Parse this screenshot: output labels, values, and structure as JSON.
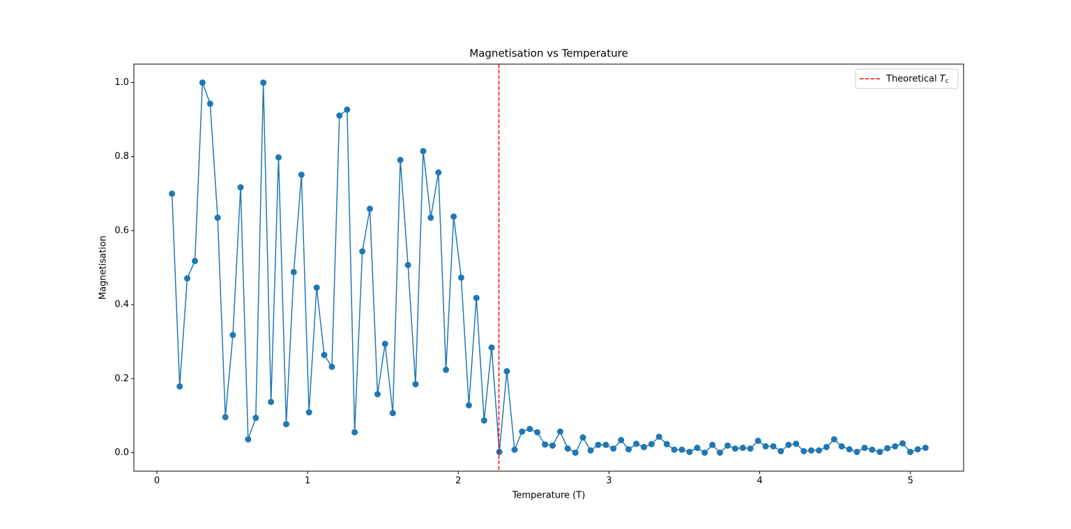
{
  "chart_data": {
    "type": "line",
    "title": "Magnetisation vs Temperature",
    "xlabel": "Temperature (T)",
    "ylabel": "Magnetisation",
    "x": [
      0.1,
      0.151,
      0.201,
      0.252,
      0.302,
      0.353,
      0.403,
      0.454,
      0.504,
      0.555,
      0.605,
      0.656,
      0.706,
      0.757,
      0.807,
      0.858,
      0.908,
      0.959,
      1.009,
      1.06,
      1.11,
      1.161,
      1.211,
      1.262,
      1.312,
      1.363,
      1.413,
      1.464,
      1.514,
      1.565,
      1.615,
      1.666,
      1.716,
      1.767,
      1.817,
      1.868,
      1.918,
      1.969,
      2.019,
      2.07,
      2.12,
      2.171,
      2.221,
      2.272,
      2.322,
      2.373,
      2.423,
      2.474,
      2.524,
      2.575,
      2.625,
      2.676,
      2.726,
      2.777,
      2.827,
      2.878,
      2.928,
      2.979,
      3.029,
      3.08,
      3.13,
      3.181,
      3.231,
      3.282,
      3.332,
      3.383,
      3.433,
      3.484,
      3.534,
      3.585,
      3.635,
      3.686,
      3.736,
      3.787,
      3.837,
      3.888,
      3.938,
      3.989,
      4.039,
      4.09,
      4.14,
      4.191,
      4.241,
      4.292,
      4.342,
      4.393,
      4.443,
      4.494,
      4.544,
      4.595,
      4.645,
      4.696,
      4.746,
      4.797,
      4.847,
      4.898,
      4.948,
      4.999,
      5.049,
      5.1
    ],
    "series": [
      {
        "color": "#1f77b4",
        "marker": "o",
        "values": [
          0.7,
          0.179,
          0.471,
          0.518,
          1.0,
          0.943,
          0.635,
          0.096,
          0.318,
          0.717,
          0.036,
          0.094,
          1.0,
          0.137,
          0.798,
          0.077,
          0.488,
          0.751,
          0.109,
          0.446,
          0.264,
          0.232,
          0.911,
          0.927,
          0.055,
          0.544,
          0.659,
          0.158,
          0.294,
          0.107,
          0.791,
          0.507,
          0.185,
          0.815,
          0.635,
          0.757,
          0.224,
          0.638,
          0.473,
          0.128,
          0.418,
          0.087,
          0.284,
          0.002,
          0.22,
          0.008,
          0.057,
          0.064,
          0.055,
          0.022,
          0.019,
          0.057,
          0.011,
          0.0,
          0.041,
          0.006,
          0.021,
          0.021,
          0.011,
          0.034,
          0.009,
          0.024,
          0.015,
          0.023,
          0.043,
          0.023,
          0.008,
          0.008,
          0.002,
          0.013,
          0.0,
          0.021,
          0.0,
          0.019,
          0.011,
          0.013,
          0.011,
          0.032,
          0.017,
          0.017,
          0.004,
          0.021,
          0.024,
          0.004,
          0.006,
          0.006,
          0.015,
          0.036,
          0.017,
          0.009,
          0.002,
          0.013,
          0.008,
          0.002,
          0.012,
          0.017,
          0.025,
          0.002,
          0.009,
          0.013
        ]
      }
    ],
    "vline": {
      "x": 2.269,
      "color": "#ff0000",
      "dash": true,
      "label": "Theoretical",
      "label_symbol": "T",
      "label_subscript": "c"
    },
    "legend": "upper right",
    "xlim": [
      -0.153,
      5.353
    ],
    "ylim": [
      -0.05,
      1.05
    ],
    "xticks": [
      0,
      1,
      2,
      3,
      4,
      5
    ],
    "yticks": [
      {
        "value": 0,
        "label": "0.0"
      },
      0.2,
      0.4,
      0.6,
      0.8,
      {
        "value": 1,
        "label": "1.0"
      }
    ]
  }
}
